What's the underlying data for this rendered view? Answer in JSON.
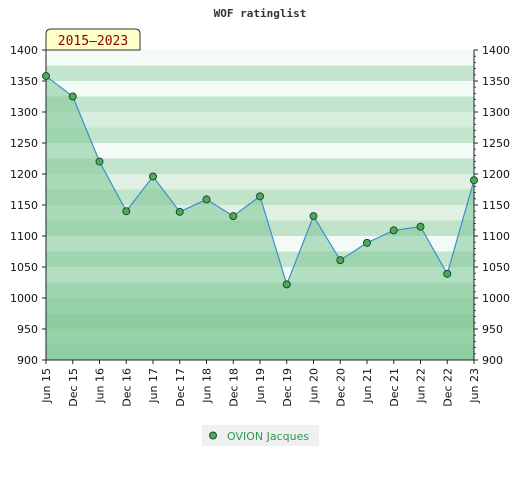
{
  "chart_data": {
    "type": "area",
    "title": "WOF ratinglist",
    "period_label": "2015–2023",
    "categories": [
      "Jun 15",
      "Dec 15",
      "Jun 16",
      "Dec 16",
      "Jun 17",
      "Dec 17",
      "Jun 18",
      "Dec 18",
      "Jun 19",
      "Dec 19",
      "Jun 20",
      "Dec 20",
      "Jun 21",
      "Dec 21",
      "Jun 22",
      "Dec 22",
      "Jun 23"
    ],
    "series": [
      {
        "name": "OVION Jacques",
        "values": [
          1358,
          1325,
          1220,
          1140,
          1196,
          1139,
          1159,
          1132,
          1164,
          1022,
          1132,
          1061,
          1089,
          1109,
          1115,
          1039,
          1190
        ]
      }
    ],
    "ylim": [
      900,
      1400
    ],
    "yticks": [
      900,
      950,
      1000,
      1050,
      1100,
      1150,
      1200,
      1250,
      1300,
      1350,
      1400
    ],
    "legend_position": "bottom",
    "grid": true,
    "colors": {
      "line": "#3a8fcf",
      "marker": "#4daa5c",
      "fill": "#7fc796",
      "band_dark": "#7fc796",
      "band_mid": "#b9e0c4",
      "band_light": "#f2f9f4",
      "legend_bg": "#f0f0f0",
      "period_bg": "#ffffc8"
    }
  }
}
